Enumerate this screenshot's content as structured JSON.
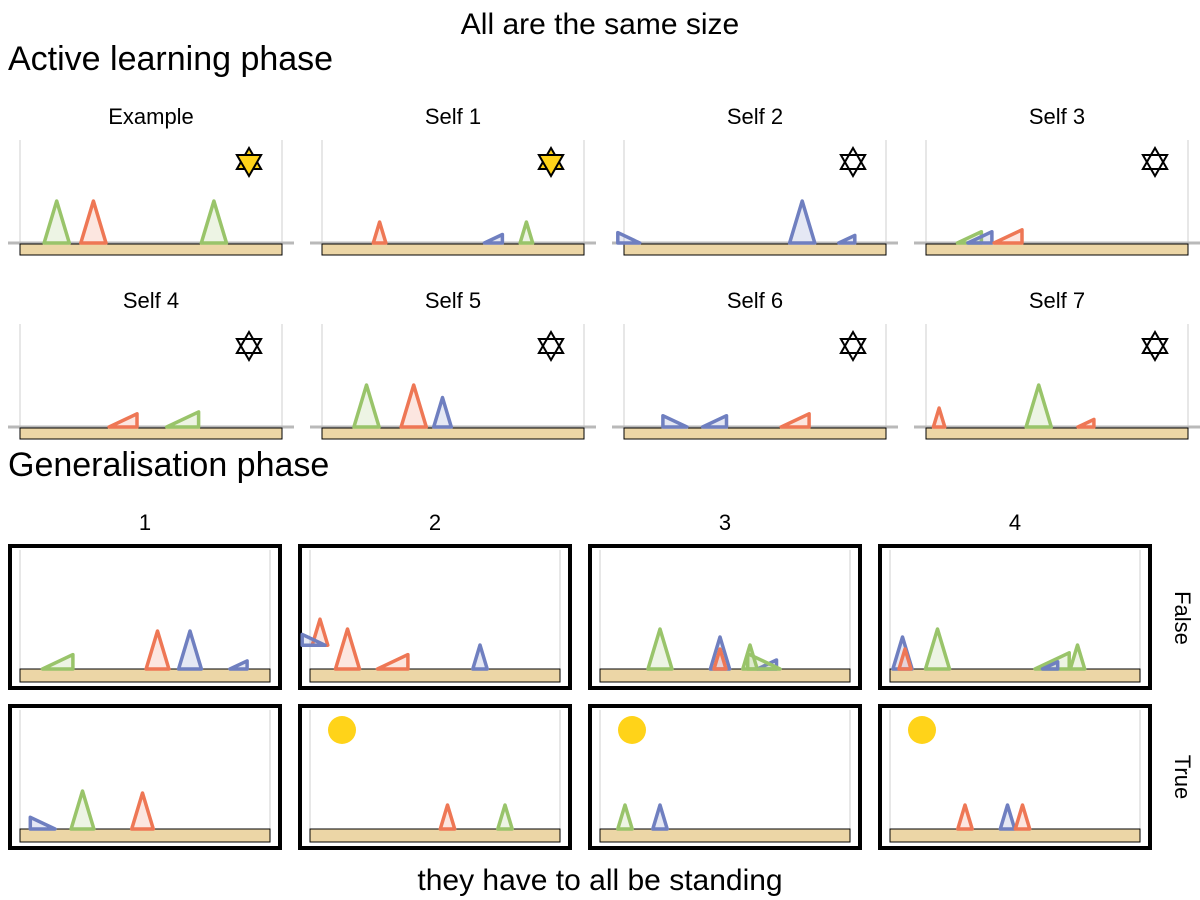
{
  "title": "All are the same size",
  "footer": "they have to all be standing",
  "colors": {
    "red": "#ee7755",
    "green": "#99c46a",
    "blue": "#6f7fc0",
    "ground": "#ecd6a6",
    "gold": "#ffd319",
    "frame": "#000000"
  },
  "active": {
    "heading": "Active learning phase",
    "panels": [
      {
        "label": "Example",
        "star": "filled",
        "shapes": [
          {
            "type": "tri",
            "color": "green",
            "x": 0.14,
            "s": 1.0
          },
          {
            "type": "tri",
            "color": "red",
            "x": 0.28,
            "s": 1.0
          },
          {
            "type": "tri",
            "color": "green",
            "x": 0.74,
            "s": 1.0
          }
        ]
      },
      {
        "label": "Self 1",
        "star": "filled",
        "shapes": [
          {
            "type": "tri",
            "color": "red",
            "x": 0.22,
            "s": 0.5
          },
          {
            "type": "wedge",
            "color": "blue",
            "x": 0.62,
            "s": 0.45,
            "dir": "right"
          },
          {
            "type": "tri",
            "color": "green",
            "x": 0.78,
            "s": 0.5
          }
        ]
      },
      {
        "label": "Self 2",
        "star": "outline",
        "shapes": [
          {
            "type": "wedge",
            "color": "blue",
            "x": 0.06,
            "s": 0.55,
            "dir": "left"
          },
          {
            "type": "tri",
            "color": "blue",
            "x": 0.68,
            "s": 1.0
          },
          {
            "type": "wedge",
            "color": "blue",
            "x": 0.82,
            "s": 0.4,
            "dir": "right"
          }
        ]
      },
      {
        "label": "Self 3",
        "star": "outline",
        "shapes": [
          {
            "type": "wedge",
            "color": "green",
            "x": 0.12,
            "s": 0.6,
            "dir": "right"
          },
          {
            "type": "wedge",
            "color": "blue",
            "x": 0.16,
            "s": 0.6,
            "dir": "right"
          },
          {
            "type": "wedge",
            "color": "red",
            "x": 0.26,
            "s": 0.7,
            "dir": "right"
          }
        ]
      },
      {
        "label": "Self 4",
        "star": "outline",
        "shapes": [
          {
            "type": "wedge",
            "color": "red",
            "x": 0.34,
            "s": 0.7,
            "dir": "right"
          },
          {
            "type": "wedge",
            "color": "green",
            "x": 0.56,
            "s": 0.8,
            "dir": "right"
          }
        ]
      },
      {
        "label": "Self 5",
        "star": "outline",
        "shapes": [
          {
            "type": "tri",
            "color": "green",
            "x": 0.17,
            "s": 1.0
          },
          {
            "type": "tri",
            "color": "red",
            "x": 0.35,
            "s": 1.0
          },
          {
            "type": "tri",
            "color": "blue",
            "x": 0.46,
            "s": 0.7
          }
        ]
      },
      {
        "label": "Self 6",
        "star": "outline",
        "shapes": [
          {
            "type": "wedge",
            "color": "blue",
            "x": 0.24,
            "s": 0.6,
            "dir": "left"
          },
          {
            "type": "wedge",
            "color": "blue",
            "x": 0.3,
            "s": 0.6,
            "dir": "right"
          },
          {
            "type": "wedge",
            "color": "red",
            "x": 0.6,
            "s": 0.7,
            "dir": "right"
          }
        ]
      },
      {
        "label": "Self 7",
        "star": "outline",
        "shapes": [
          {
            "type": "tri",
            "color": "red",
            "x": 0.05,
            "s": 0.45
          },
          {
            "type": "tri",
            "color": "green",
            "x": 0.43,
            "s": 1.0
          },
          {
            "type": "wedge",
            "color": "red",
            "x": 0.58,
            "s": 0.4,
            "dir": "right"
          }
        ]
      }
    ]
  },
  "generalisation": {
    "heading": "Generalisation phase",
    "columns": [
      "1",
      "2",
      "3",
      "4"
    ],
    "rows": [
      "False",
      "True"
    ],
    "panels": [
      {
        "sun": false,
        "shapes": [
          {
            "type": "wedge",
            "color": "green",
            "x": 0.09,
            "s": 0.8,
            "dir": "right"
          },
          {
            "type": "tri",
            "color": "red",
            "x": 0.55,
            "s": 0.95
          },
          {
            "type": "tri",
            "color": "blue",
            "x": 0.68,
            "s": 0.95
          },
          {
            "type": "wedge",
            "color": "blue",
            "x": 0.84,
            "s": 0.45,
            "dir": "right"
          }
        ]
      },
      {
        "sun": false,
        "shapes": [
          {
            "type": "tri",
            "color": "red",
            "x": 0.04,
            "s": 0.65,
            "lift": 0.27
          },
          {
            "type": "wedge",
            "color": "blue",
            "x": 0.06,
            "s": 0.6,
            "dir": "left",
            "lift": 0.27
          },
          {
            "type": "tri",
            "color": "red",
            "x": 0.15,
            "s": 1.0
          },
          {
            "type": "wedge",
            "color": "red",
            "x": 0.27,
            "s": 0.8,
            "dir": "right"
          },
          {
            "type": "tri",
            "color": "blue",
            "x": 0.68,
            "s": 0.6
          }
        ]
      },
      {
        "sun": false,
        "shapes": [
          {
            "type": "tri",
            "color": "green",
            "x": 0.24,
            "s": 1.0
          },
          {
            "type": "tri",
            "color": "blue",
            "x": 0.48,
            "s": 0.8
          },
          {
            "type": "tri",
            "color": "red",
            "x": 0.48,
            "s": 0.5
          },
          {
            "type": "tri",
            "color": "green",
            "x": 0.6,
            "s": 0.6
          },
          {
            "type": "wedge",
            "color": "blue",
            "x": 0.63,
            "s": 0.5,
            "dir": "right"
          },
          {
            "type": "wedge",
            "color": "green",
            "x": 0.72,
            "s": 0.85,
            "dir": "left"
          }
        ]
      },
      {
        "sun": false,
        "shapes": [
          {
            "type": "tri",
            "color": "blue",
            "x": 0.05,
            "s": 0.8
          },
          {
            "type": "tri",
            "color": "red",
            "x": 0.06,
            "s": 0.5
          },
          {
            "type": "tri",
            "color": "green",
            "x": 0.19,
            "s": 1.0
          },
          {
            "type": "wedge",
            "color": "green",
            "x": 0.58,
            "s": 0.9,
            "dir": "right"
          },
          {
            "type": "wedge",
            "color": "blue",
            "x": 0.61,
            "s": 0.4,
            "dir": "right"
          },
          {
            "type": "tri",
            "color": "green",
            "x": 0.75,
            "s": 0.6
          }
        ]
      },
      {
        "sun": false,
        "shapes": [
          {
            "type": "wedge",
            "color": "blue",
            "x": 0.14,
            "s": 0.65,
            "dir": "left"
          },
          {
            "type": "tri",
            "color": "green",
            "x": 0.25,
            "s": 0.95
          },
          {
            "type": "tri",
            "color": "red",
            "x": 0.49,
            "s": 0.9
          }
        ]
      },
      {
        "sun": true,
        "shapes": [
          {
            "type": "tri",
            "color": "red",
            "x": 0.55,
            "s": 0.6
          },
          {
            "type": "tri",
            "color": "green",
            "x": 0.78,
            "s": 0.6
          }
        ]
      },
      {
        "sun": true,
        "shapes": [
          {
            "type": "tri",
            "color": "green",
            "x": 0.1,
            "s": 0.6
          },
          {
            "type": "tri",
            "color": "blue",
            "x": 0.24,
            "s": 0.6
          }
        ]
      },
      {
        "sun": true,
        "shapes": [
          {
            "type": "tri",
            "color": "red",
            "x": 0.3,
            "s": 0.6
          },
          {
            "type": "tri",
            "color": "blue",
            "x": 0.47,
            "s": 0.6
          },
          {
            "type": "tri",
            "color": "red",
            "x": 0.53,
            "s": 0.6
          }
        ]
      }
    ]
  }
}
